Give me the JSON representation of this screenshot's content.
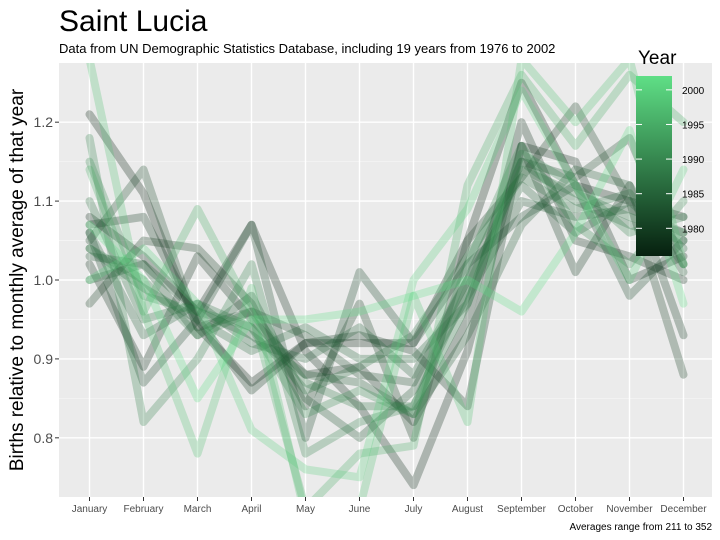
{
  "chart_data": {
    "type": "line",
    "title": "Saint Lucia",
    "subtitle": "Data from UN Demographic Statistics Database, including 19 years from 1976 to 2002",
    "xlabel": "",
    "ylabel": "Births relative to monthly average of that year",
    "caption": "Averages range from 211 to 352",
    "categories": [
      "January",
      "February",
      "March",
      "April",
      "May",
      "June",
      "July",
      "August",
      "September",
      "October",
      "November",
      "December"
    ],
    "ylim": [
      0.725,
      1.275
    ],
    "yticks": [
      "0.8",
      "0.9",
      "1.0",
      "1.1",
      "1.2"
    ],
    "grid": true,
    "legend": {
      "title": "Year",
      "placement": "right",
      "ticks": [
        "1980",
        "1985",
        "1990",
        "1995",
        "2000"
      ],
      "range": [
        1976,
        2002
      ],
      "color_low": "#06200f",
      "color_high": "#5fdf86"
    },
    "series": [
      {
        "year": 1976,
        "values": [
          1.21,
          1.11,
          0.94,
          0.87,
          0.92,
          0.92,
          0.92,
          1.05,
          1.25,
          1.12,
          1.1,
          1.08
        ]
      },
      {
        "year": 1977,
        "values": [
          1.08,
          1.03,
          0.96,
          1.07,
          0.91,
          0.84,
          0.74,
          0.91,
          1.17,
          1.15,
          1.0,
          1.03
        ]
      },
      {
        "year": 1978,
        "values": [
          1.02,
          0.89,
          1.03,
          0.95,
          0.88,
          0.89,
          0.82,
          0.95,
          1.2,
          1.05,
          1.03,
          1.0
        ]
      },
      {
        "year": 1979,
        "values": [
          1.07,
          1.08,
          0.95,
          0.86,
          0.92,
          0.93,
          0.91,
          0.84,
          1.17,
          1.01,
          1.12,
          0.93
        ]
      },
      {
        "year": 1980,
        "values": [
          0.97,
          1.05,
          1.04,
          0.97,
          0.84,
          0.97,
          0.8,
          1.05,
          1.13,
          1.22,
          1.1,
          0.88
        ]
      },
      {
        "year": 1981,
        "values": [
          1.06,
          0.87,
          0.95,
          1.07,
          0.8,
          1.01,
          0.92,
          1.02,
          1.08,
          1.12,
          0.98,
          1.05
        ]
      },
      {
        "year": 1982,
        "values": [
          1.05,
          1.14,
          0.94,
          0.96,
          0.93,
          0.88,
          0.87,
          1.0,
          1.15,
          1.13,
          1.18,
          1.02
        ]
      },
      {
        "year": 1983,
        "values": [
          1.03,
          1.02,
          0.93,
          0.98,
          0.85,
          0.8,
          0.86,
          0.98,
          1.1,
          1.08,
          1.09,
          1.06
        ]
      },
      {
        "year": 1984,
        "values": [
          1.0,
          1.02,
          0.96,
          0.93,
          0.88,
          0.87,
          0.83,
          0.93,
          1.07,
          1.14,
          1.12,
          1.01
        ]
      },
      {
        "year": 1985,
        "values": [
          1.06,
          0.93,
          0.97,
          0.92,
          0.9,
          0.94,
          0.88,
          1.0,
          1.12,
          1.06,
          1.1,
          1.04
        ]
      },
      {
        "year": 1986,
        "values": [
          1.04,
          0.99,
          0.95,
          0.91,
          0.94,
          0.9,
          0.9,
          0.97,
          1.15,
          1.1,
          1.07,
          1.05
        ]
      },
      {
        "year": 1987,
        "values": [
          1.1,
          0.95,
          0.97,
          0.94,
          0.86,
          0.89,
          0.93,
          1.03,
          1.13,
          1.09,
          1.11,
          1.02
        ]
      },
      {
        "year": 1988,
        "values": [
          1.04,
          1.0,
          0.93,
          0.96,
          0.87,
          0.84,
          0.84,
          0.99,
          1.14,
          1.11,
          1.08,
          1.06
        ]
      },
      {
        "year": 1989,
        "values": [
          1.18,
          0.82,
          0.9,
          1.02,
          0.78,
          0.82,
          0.84,
          0.97,
          1.16,
          1.12,
          1.06,
          1.08
        ]
      },
      {
        "year": 1990,
        "values": [
          1.15,
          0.98,
          0.96,
          0.94,
          0.83,
          0.86,
          0.83,
          1.02,
          1.17,
          1.07,
          1.02,
          1.1
        ]
      },
      {
        "year": 1995,
        "values": [
          1.14,
          0.96,
          1.09,
          0.96,
          0.71,
          0.78,
          0.79,
          1.12,
          1.26,
          1.17,
          1.26,
          1.2
        ]
      },
      {
        "year": 1998,
        "values": [
          1.28,
          0.96,
          0.78,
          0.99,
          0.7,
          0.71,
          0.98,
          0.82,
          1.28,
          1.2,
          1.28,
          1.02
        ]
      },
      {
        "year": 2000,
        "values": [
          1.0,
          1.04,
          0.97,
          0.81,
          0.76,
          0.75,
          1.0,
          1.09,
          1.24,
          1.12,
          1.0,
          1.14
        ]
      },
      {
        "year": 2002,
        "values": [
          1.07,
          1.0,
          0.85,
          0.95,
          0.95,
          0.96,
          0.98,
          1.0,
          0.96,
          1.06,
          1.19,
          0.97
        ]
      }
    ]
  }
}
